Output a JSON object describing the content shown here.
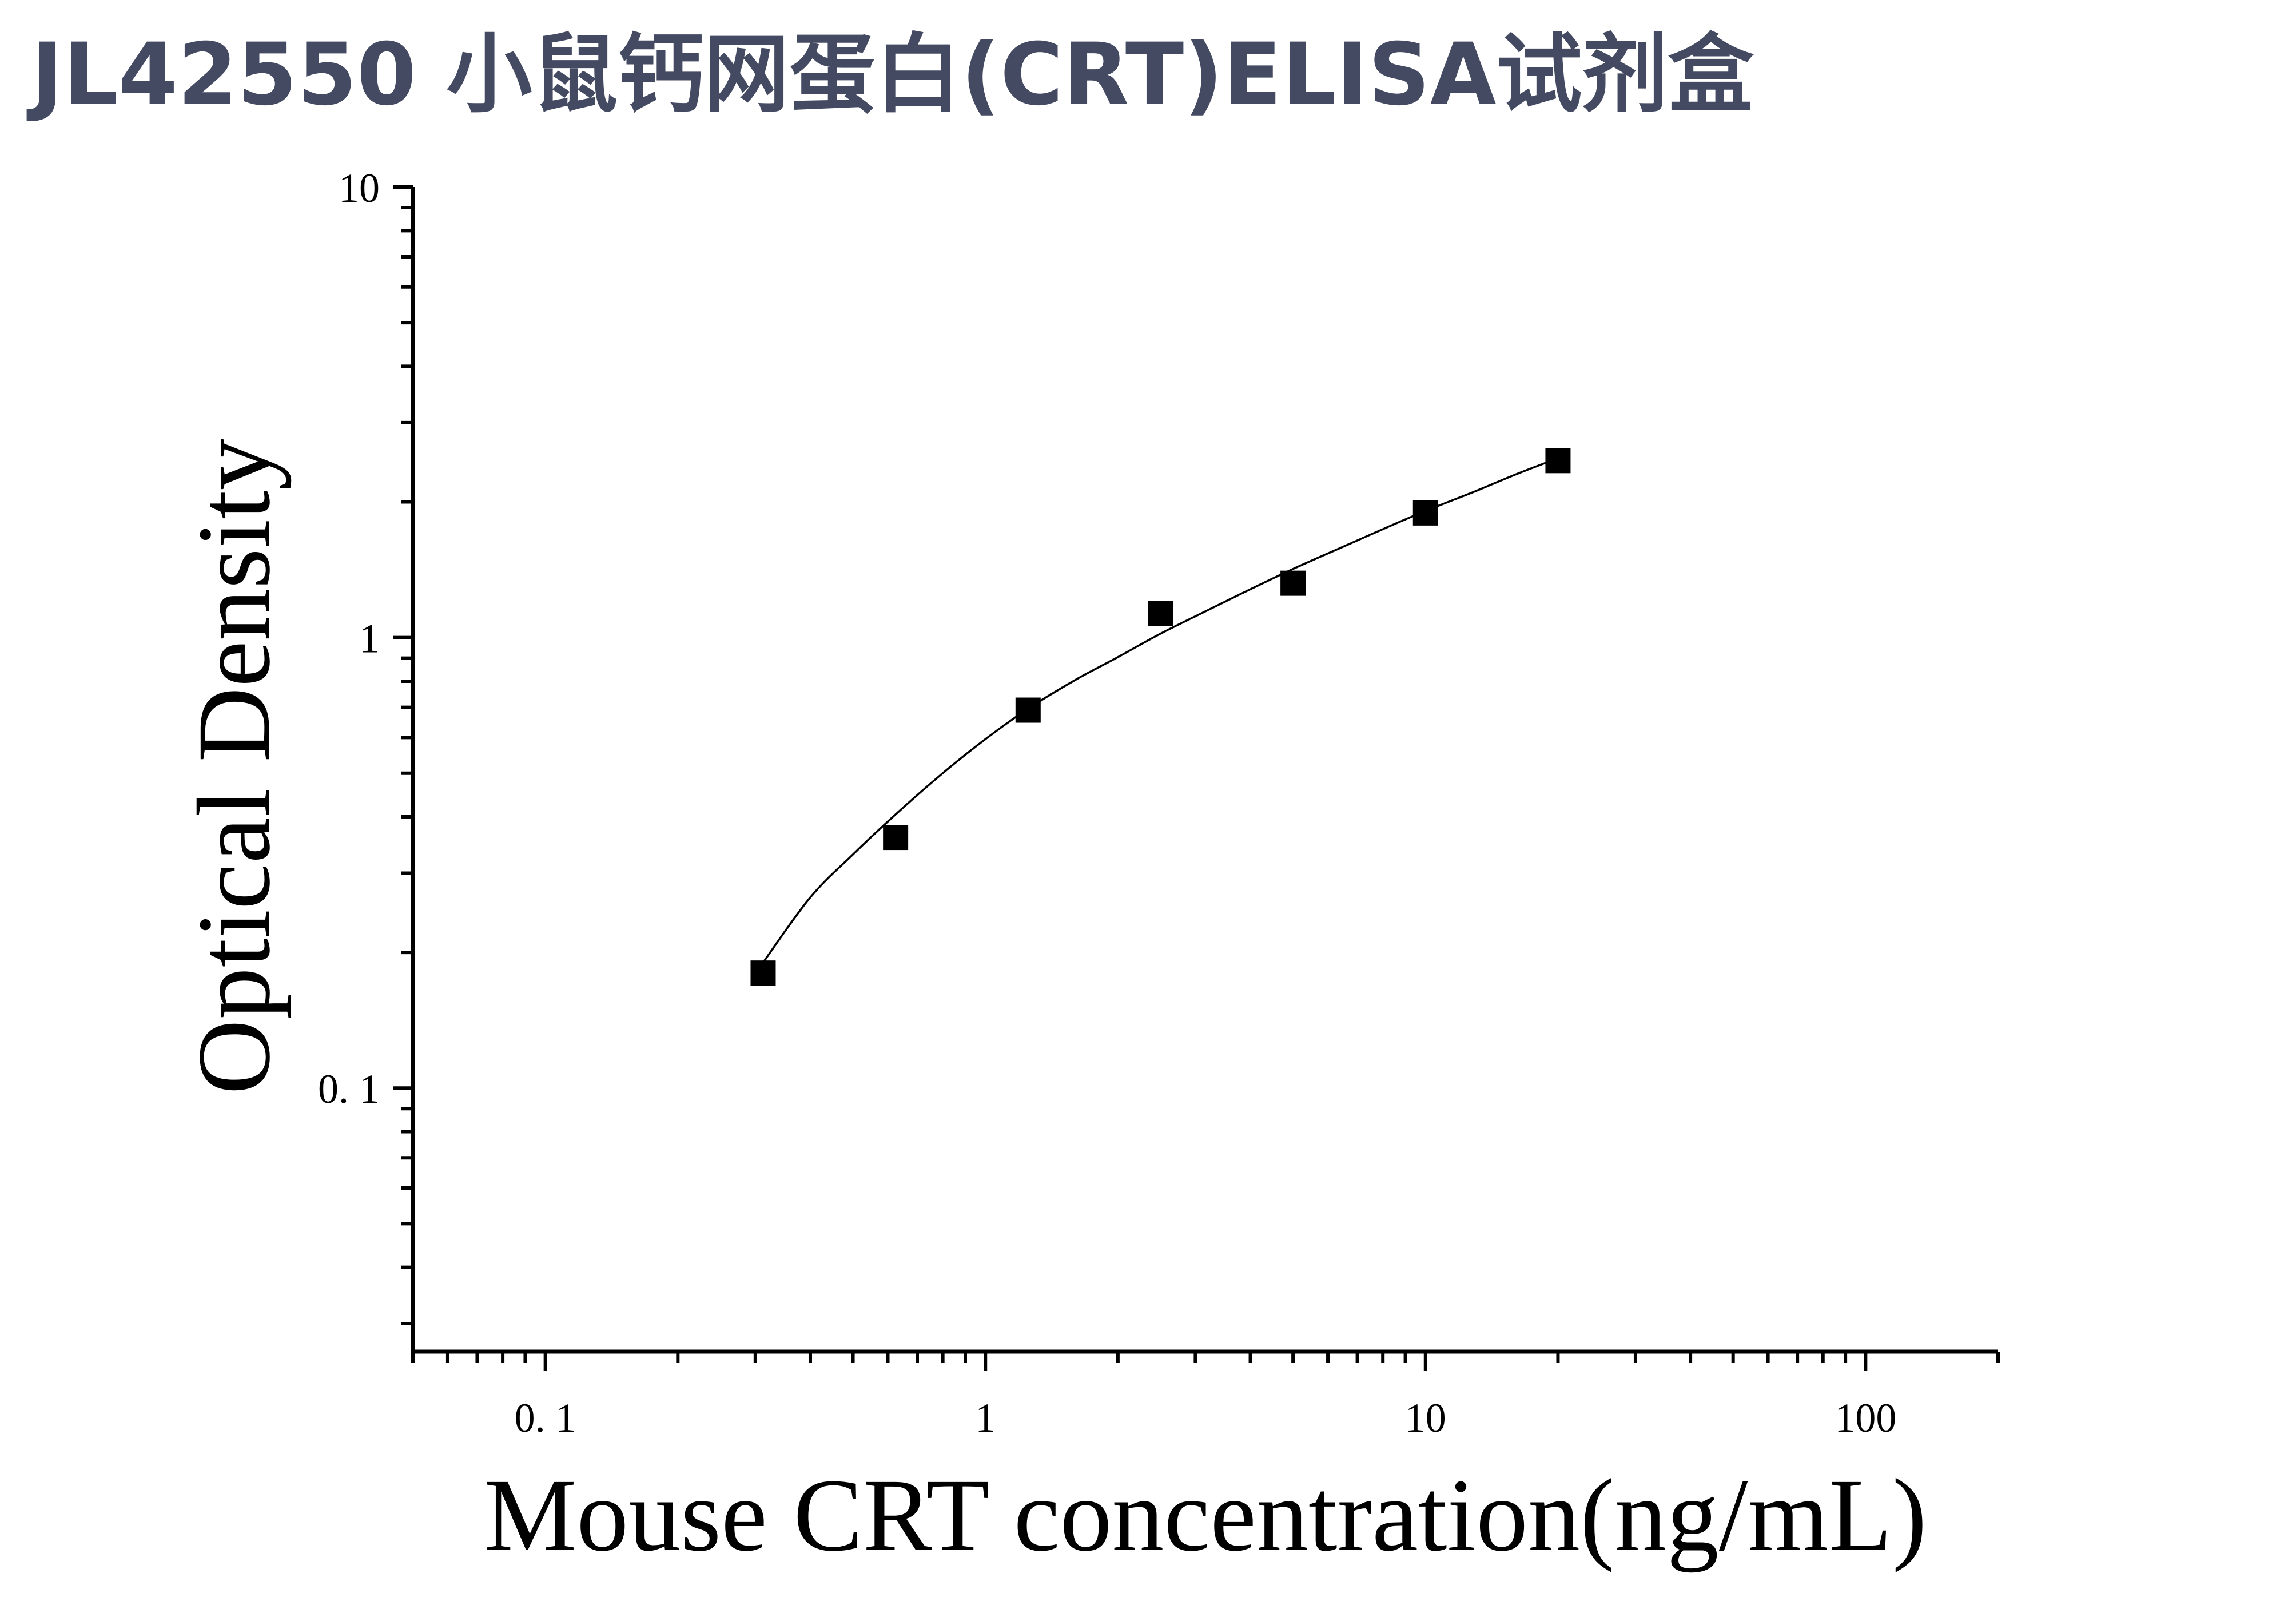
{
  "title": "JL42550 小鼠钙网蛋白(CRT)ELISA试剂盒",
  "chart_data": {
    "type": "scatter",
    "title": "JL42550 小鼠钙网蛋白(CRT)ELISA试剂盒",
    "xlabel": "Mouse CRT concentration(ng/mL)",
    "ylabel": "Optical Density",
    "xscale": "log",
    "yscale": "log",
    "xlim": [
      0.05,
      200
    ],
    "ylim": [
      0.026,
      10
    ],
    "x_ticks": [
      {
        "value": 0.1,
        "label": "0. 1"
      },
      {
        "value": 1,
        "label": "1"
      },
      {
        "value": 10,
        "label": "10"
      },
      {
        "value": 100,
        "label": "100"
      }
    ],
    "y_ticks": [
      {
        "value": 0.1,
        "label": "0. 1"
      },
      {
        "value": 1,
        "label": "1"
      },
      {
        "value": 10,
        "label": "10"
      }
    ],
    "grid": false,
    "legend": "none",
    "series": [
      {
        "marker": "square",
        "color": "#000000",
        "x": [
          0.3125,
          0.625,
          1.25,
          2.5,
          5,
          10,
          20
        ],
        "y": [
          0.18,
          0.36,
          0.69,
          1.13,
          1.32,
          1.89,
          2.47
        ]
      }
    ],
    "fit_curve": {
      "color": "#000000",
      "x": [
        0.3125,
        0.4,
        0.5,
        0.625,
        0.8,
        1,
        1.25,
        1.6,
        2,
        2.5,
        3.2,
        4,
        5,
        6.4,
        8,
        10,
        12.8,
        16,
        20
      ],
      "y": [
        0.19,
        0.265,
        0.33,
        0.405,
        0.5,
        0.595,
        0.695,
        0.805,
        0.905,
        1.02,
        1.15,
        1.28,
        1.42,
        1.58,
        1.74,
        1.91,
        2.1,
        2.3,
        2.5
      ]
    }
  }
}
